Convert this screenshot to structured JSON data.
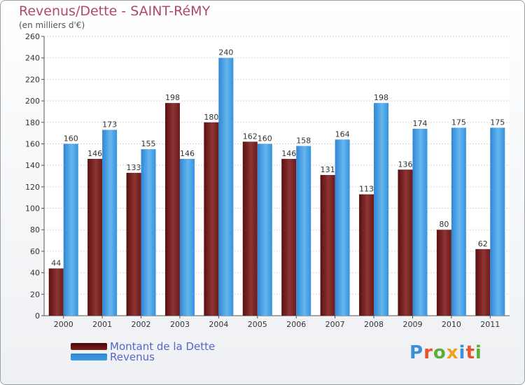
{
  "chart_data": {
    "type": "bar",
    "title": "Revenus/Dette - SAINT-RéMY",
    "subtitle": "(en milliers d'€)",
    "categories": [
      "2000",
      "2001",
      "2002",
      "2003",
      "2004",
      "2005",
      "2006",
      "2007",
      "2008",
      "2009",
      "2010",
      "2011"
    ],
    "series": [
      {
        "name": "Montant de la Dette",
        "color": "#7a1c1c",
        "values": [
          44,
          146,
          133,
          198,
          180,
          162,
          146,
          131,
          113,
          136,
          80,
          62
        ]
      },
      {
        "name": "Revenus",
        "color": "#3d9ee6",
        "values": [
          160,
          173,
          155,
          146,
          240,
          160,
          158,
          164,
          198,
          174,
          175,
          175
        ]
      }
    ],
    "ylim": [
      0,
      260
    ],
    "yticks": [
      0,
      20,
      40,
      60,
      80,
      100,
      120,
      140,
      160,
      180,
      200,
      220,
      240,
      260
    ],
    "grid": true,
    "legend": "bottom-left"
  },
  "logo": {
    "text": "Proxiti",
    "colors": [
      "#3d8fd6",
      "#e8542a",
      "#5bb03a",
      "#f0a020",
      "#3d8fd6",
      "#e8542a",
      "#5bb03a"
    ]
  }
}
